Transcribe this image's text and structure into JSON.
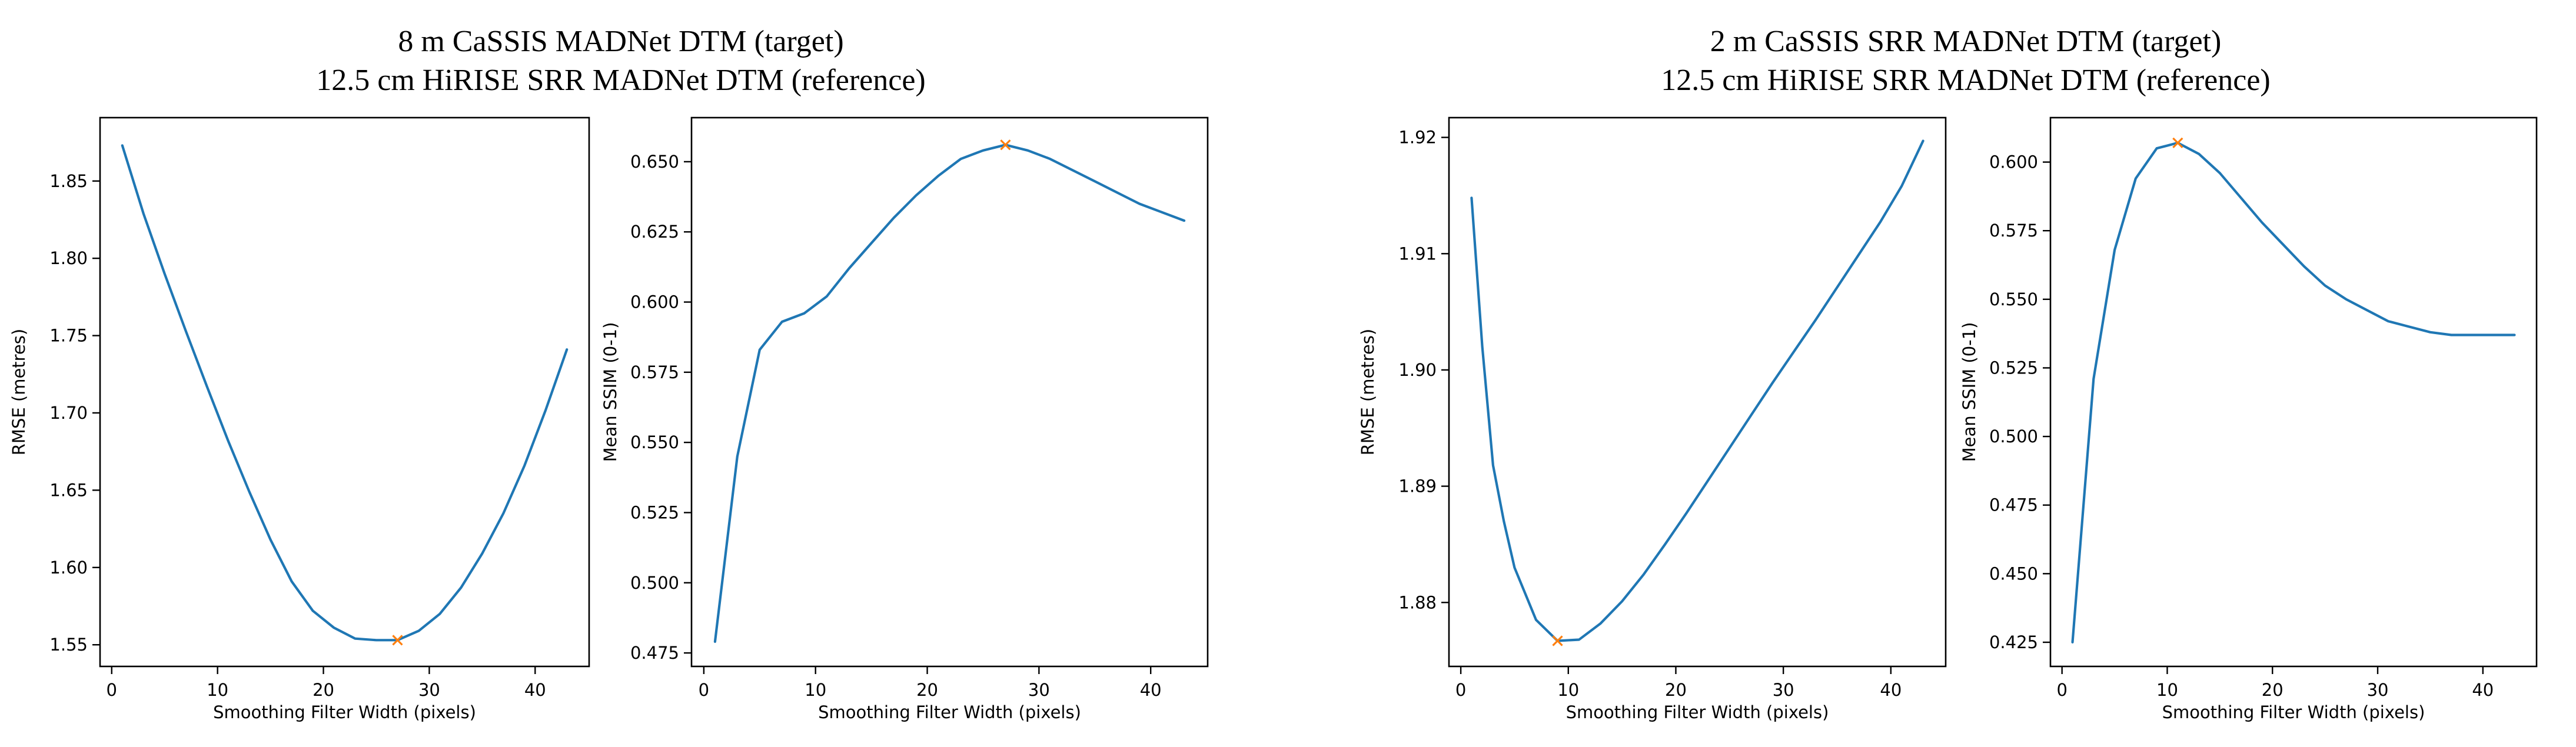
{
  "groups": [
    {
      "title_line1": "8 m CaSSIS MADNet DTM (target)",
      "title_line2": "12.5 cm HiRISE SRR MADNet DTM (reference)"
    },
    {
      "title_line1": "2 m CaSSIS SRR MADNet DTM (target)",
      "title_line2": "12.5 cm HiRISE SRR MADNet DTM (reference)"
    }
  ],
  "colors": {
    "line": "#1f77b4",
    "marker": "#ff7f0e",
    "axes": "#000000"
  },
  "chart_data": [
    {
      "type": "line",
      "group": 0,
      "xlabel": "Smoothing Filter Width (pixels)",
      "ylabel": "RMSE (metres)",
      "xlim": [
        -1.1,
        45.1
      ],
      "ylim": [
        1.536,
        1.891
      ],
      "xticks": [
        0,
        10,
        20,
        30,
        40
      ],
      "yticks": [
        1.55,
        1.6,
        1.65,
        1.7,
        1.75,
        1.8,
        1.85
      ],
      "ytick_labels": [
        "1.55",
        "1.60",
        "1.65",
        "1.70",
        "1.75",
        "1.80",
        "1.85"
      ],
      "x": [
        1,
        3,
        5,
        7,
        9,
        11,
        13,
        15,
        17,
        19,
        21,
        23,
        25,
        27,
        29,
        31,
        33,
        35,
        37,
        39,
        41,
        43
      ],
      "y": [
        1.873,
        1.829,
        1.79,
        1.753,
        1.717,
        1.682,
        1.649,
        1.618,
        1.591,
        1.572,
        1.561,
        1.554,
        1.553,
        1.553,
        1.559,
        1.57,
        1.587,
        1.609,
        1.635,
        1.666,
        1.702,
        1.741
      ],
      "marker": {
        "x": 27,
        "y": 1.553
      }
    },
    {
      "type": "line",
      "group": 0,
      "xlabel": "Smoothing Filter Width (pixels)",
      "ylabel": "Mean SSIM (0-1)",
      "xlim": [
        -1.1,
        45.1
      ],
      "ylim": [
        0.4702,
        0.6657
      ],
      "xticks": [
        0,
        10,
        20,
        30,
        40
      ],
      "yticks": [
        0.475,
        0.5,
        0.525,
        0.55,
        0.575,
        0.6,
        0.625,
        0.65
      ],
      "ytick_labels": [
        "0.475",
        "0.500",
        "0.525",
        "0.550",
        "0.575",
        "0.600",
        "0.625",
        "0.650"
      ],
      "x": [
        1,
        3,
        5,
        7,
        9,
        11,
        13,
        15,
        17,
        19,
        21,
        23,
        25,
        27,
        29,
        31,
        33,
        35,
        37,
        39,
        41,
        43
      ],
      "y": [
        0.479,
        0.545,
        0.583,
        0.593,
        0.596,
        0.602,
        0.612,
        0.621,
        0.63,
        0.638,
        0.645,
        0.651,
        0.654,
        0.656,
        0.654,
        0.651,
        0.647,
        0.643,
        0.639,
        0.635,
        0.632,
        0.629
      ],
      "marker": {
        "x": 27,
        "y": 0.656
      }
    },
    {
      "type": "line",
      "group": 1,
      "xlabel": "Smoothing Filter Width (pixels)",
      "ylabel": "RMSE (metres)",
      "xlim": [
        -1.1,
        45.1
      ],
      "ylim": [
        1.8745,
        1.9217
      ],
      "xticks": [
        0,
        10,
        20,
        30,
        40
      ],
      "yticks": [
        1.88,
        1.89,
        1.9,
        1.91,
        1.92
      ],
      "ytick_labels": [
        "1.88",
        "1.89",
        "1.90",
        "1.91",
        "1.92"
      ],
      "x": [
        1,
        2,
        3,
        4,
        5,
        7,
        9,
        11,
        13,
        15,
        17,
        19,
        21,
        23,
        25,
        27,
        29,
        31,
        33,
        35,
        37,
        39,
        41,
        43
      ],
      "y": [
        1.9148,
        1.902,
        1.8918,
        1.887,
        1.883,
        1.8785,
        1.8767,
        1.8768,
        1.8782,
        1.8801,
        1.8824,
        1.885,
        1.8877,
        1.8905,
        1.8933,
        1.8961,
        1.8989,
        1.9016,
        1.9043,
        1.9071,
        1.9099,
        1.9127,
        1.9158,
        1.9197
      ],
      "marker": {
        "x": 9,
        "y": 1.8767
      }
    },
    {
      "type": "line",
      "group": 1,
      "xlabel": "Smoothing Filter Width (pixels)",
      "ylabel": "Mean SSIM (0-1)",
      "xlim": [
        -1.1,
        45.1
      ],
      "ylim": [
        0.4162,
        0.6162
      ],
      "xticks": [
        0,
        10,
        20,
        30,
        40
      ],
      "yticks": [
        0.425,
        0.45,
        0.475,
        0.5,
        0.525,
        0.55,
        0.575,
        0.6
      ],
      "ytick_labels": [
        "0.425",
        "0.450",
        "0.475",
        "0.500",
        "0.525",
        "0.550",
        "0.575",
        "0.600"
      ],
      "x": [
        1,
        3,
        5,
        7,
        9,
        11,
        13,
        15,
        17,
        19,
        21,
        23,
        25,
        27,
        29,
        31,
        33,
        35,
        37,
        39,
        41,
        43
      ],
      "y": [
        0.425,
        0.521,
        0.568,
        0.594,
        0.605,
        0.607,
        0.603,
        0.596,
        0.587,
        0.578,
        0.57,
        0.562,
        0.555,
        0.55,
        0.546,
        0.542,
        0.54,
        0.538,
        0.537,
        0.537,
        0.537,
        0.537
      ],
      "marker": {
        "x": 11,
        "y": 0.607
      }
    }
  ]
}
